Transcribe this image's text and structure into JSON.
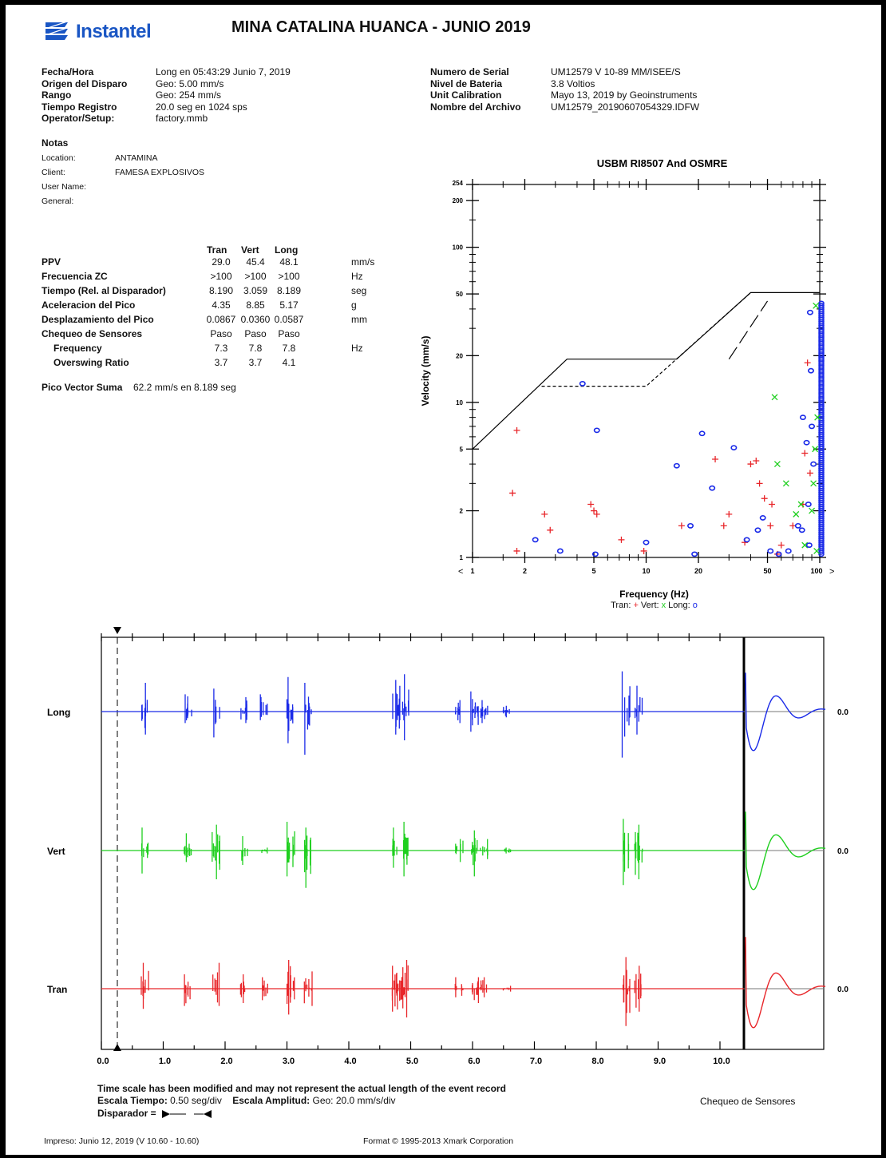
{
  "header": {
    "brand": "Instantel",
    "title": "MINA CATALINA HUANCA - JUNIO 2019",
    "brand_color": "#1a56c4"
  },
  "info_left": [
    {
      "label": "Fecha/Hora",
      "value": "Long en 05:43:29 Junio 7, 2019"
    },
    {
      "label": "Origen del Disparo",
      "value": "Geo: 5.00 mm/s"
    },
    {
      "label": "Rango",
      "value": "Geo: 254 mm/s"
    },
    {
      "label": "Tiempo Registro",
      "value": "20.0 seg en 1024 sps"
    },
    {
      "label": "Operator/Setup:",
      "value": "factory.mmb"
    }
  ],
  "notes": {
    "title": "Notas",
    "rows": [
      {
        "label": "Location:",
        "value": "ANTAMINA"
      },
      {
        "label": "Client:",
        "value": "FAMESA EXPLOSIVOS"
      },
      {
        "label": "User Name:",
        "value": ""
      },
      {
        "label": "General:",
        "value": ""
      }
    ]
  },
  "info_right": [
    {
      "label": "Numero de Serial",
      "value": "UM12579 V 10-89 MM/ISEE/S"
    },
    {
      "label": "Nivel de Bateria",
      "value": "3.8 Voltios"
    },
    {
      "label": "Unit Calibration",
      "value": "Mayo 13, 2019 by Geoinstruments"
    },
    {
      "label": "Nombre del Archivo",
      "value": "UM12579_20190607054329.IDFW"
    }
  ],
  "peak_table": {
    "columns": [
      "Tran",
      "Vert",
      "Long"
    ],
    "rows": [
      {
        "label": "PPV",
        "bold": true,
        "values": [
          "29.0",
          "45.4",
          "48.1"
        ],
        "unit": "mm/s"
      },
      {
        "label": "Frecuencia ZC",
        "bold": true,
        "values": [
          ">100",
          ">100",
          ">100"
        ],
        "unit": "Hz"
      },
      {
        "label": "Tiempo (Rel. al Disparador)",
        "bold": true,
        "values": [
          "8.190",
          "3.059",
          "8.189"
        ],
        "unit": "seg"
      },
      {
        "label": "Aceleracion del Pico",
        "bold": true,
        "values": [
          "4.35",
          "8.85",
          "5.17"
        ],
        "unit": "g"
      },
      {
        "label": "Desplazamiento del Pico",
        "bold": true,
        "values": [
          "0.0867",
          "0.0360",
          "0.0587"
        ],
        "unit": "mm"
      },
      {
        "label": "Chequeo de Sensores",
        "bold": true,
        "values": [
          "Paso",
          "Paso",
          "Paso"
        ],
        "unit": ""
      },
      {
        "label": "Frequency",
        "bold": true,
        "values": [
          "7.3",
          "7.8",
          "7.8"
        ],
        "unit": "Hz"
      },
      {
        "label": "Overswing Ratio",
        "bold": true,
        "values": [
          "3.7",
          "3.7",
          "4.1"
        ],
        "unit": ""
      }
    ],
    "pvs_label": "Pico Vector Suma",
    "pvs_value": "62.2 mm/s en 8.189 seg"
  },
  "chart_data": [
    {
      "type": "scatter",
      "title": "USBM RI8507 And OSMRE",
      "xlabel": "Frequency (Hz)",
      "ylabel": "Velocity (mm/s)",
      "x_scale": "log",
      "y_scale": "log",
      "xlim": [
        1,
        100
      ],
      "ylim": [
        1,
        254
      ],
      "x_ticks": [
        "1",
        "2",
        "5",
        "10",
        "20",
        "50",
        "100"
      ],
      "y_ticks": [
        "1",
        "2",
        "5",
        "10",
        "20",
        "50",
        "100",
        "200",
        "254"
      ],
      "x_left_marker": "<",
      "x_right_marker": ">",
      "legend_label": "Tran: + Vert: x Long: o",
      "limit_lines": [
        {
          "name": "upper",
          "style": "solid",
          "points": [
            [
              1,
              5
            ],
            [
              3.5,
              19
            ],
            [
              15,
              19
            ],
            [
              40,
              51
            ],
            [
              100,
              51
            ]
          ]
        },
        {
          "name": "lower",
          "style": "dashed",
          "points": [
            [
              2.5,
              12.7
            ],
            [
              10,
              12.7
            ],
            [
              40,
              51
            ]
          ]
        },
        {
          "name": "osmre",
          "style": "long-dash",
          "points": [
            [
              30,
              19
            ],
            [
              50,
              45
            ]
          ]
        }
      ],
      "series": [
        {
          "name": "Tran",
          "color": "#e8262a",
          "marker": "+",
          "points": [
            [
              1.8,
              6.6
            ],
            [
              1.7,
              2.6
            ],
            [
              1.8,
              1.1
            ],
            [
              2.6,
              1.9
            ],
            [
              2.8,
              1.5
            ],
            [
              4.8,
              2.2
            ],
            [
              5.0,
              2.0
            ],
            [
              5.2,
              1.9
            ],
            [
              7.2,
              1.3
            ],
            [
              9.7,
              1.1
            ],
            [
              16,
              1.6
            ],
            [
              25,
              4.3
            ],
            [
              28,
              1.6
            ],
            [
              30,
              1.9
            ],
            [
              37,
              1.25
            ],
            [
              40,
              4.0
            ],
            [
              43,
              4.2
            ],
            [
              45,
              3.0
            ],
            [
              48,
              2.4
            ],
            [
              52,
              1.6
            ],
            [
              53,
              2.2
            ],
            [
              57,
              1.05
            ],
            [
              60,
              1.2
            ],
            [
              70,
              1.6
            ],
            [
              80,
              2.2
            ],
            [
              82,
              4.7
            ],
            [
              85,
              18
            ],
            [
              88,
              3.5
            ]
          ]
        },
        {
          "name": "Vert",
          "color": "#1fcf1f",
          "marker": "x",
          "points": [
            [
              55,
              10.8
            ],
            [
              57,
              4.0
            ],
            [
              64,
              3.0
            ],
            [
              73,
              1.9
            ],
            [
              78,
              2.2
            ],
            [
              82,
              1.2
            ],
            [
              90,
              2.0
            ],
            [
              92,
              3.0
            ],
            [
              94,
              5.0
            ],
            [
              95,
              42
            ],
            [
              96,
              1.1
            ],
            [
              97,
              8.0
            ]
          ]
        },
        {
          "name": "Long",
          "color": "#1a2ae8",
          "marker": "o",
          "points": [
            [
              2.3,
              1.3
            ],
            [
              3.2,
              1.1
            ],
            [
              4.3,
              13.2
            ],
            [
              5.2,
              6.6
            ],
            [
              5.1,
              1.05
            ],
            [
              10,
              1.25
            ],
            [
              15,
              3.9
            ],
            [
              18,
              1.6
            ],
            [
              19,
              1.05
            ],
            [
              21,
              6.3
            ],
            [
              24,
              2.8
            ],
            [
              32,
              5.1
            ],
            [
              38,
              1.3
            ],
            [
              44,
              1.5
            ],
            [
              47,
              1.8
            ],
            [
              52,
              1.1
            ],
            [
              58,
              1.05
            ],
            [
              66,
              1.1
            ],
            [
              75,
              1.6
            ],
            [
              79,
              1.5
            ],
            [
              80,
              8.0
            ],
            [
              84,
              5.5
            ],
            [
              86,
              2.2
            ],
            [
              87,
              1.2
            ],
            [
              88,
              38
            ],
            [
              89,
              16
            ],
            [
              90,
              7.0
            ],
            [
              92,
              4.0
            ]
          ]
        }
      ]
    },
    {
      "type": "line",
      "title": "",
      "channels": [
        {
          "name": "Long",
          "color": "#1a2ae8",
          "zero_label": "0.0"
        },
        {
          "name": "Vert",
          "color": "#1fcf1f",
          "zero_label": "0.0"
        },
        {
          "name": "Tran",
          "color": "#e8262a",
          "zero_label": "0.0"
        }
      ],
      "x_ticks": [
        "0.0",
        "1.0",
        "2.0",
        "3.0",
        "4.0",
        "5.0",
        "6.0",
        "7.0",
        "8.0",
        "9.0",
        "10.0"
      ],
      "xlim": [
        0,
        10
      ],
      "trigger_time": 0.0,
      "events": [
        {
          "t": 0.42,
          "long": [
            0.5,
            -0.4
          ],
          "vert": [
            0.4,
            -0.4
          ],
          "tran": [
            0.45,
            -0.35
          ]
        },
        {
          "t": 1.12,
          "long": [
            0.3,
            -0.2
          ],
          "vert": [
            0.3,
            -0.2
          ],
          "tran": [
            0.25,
            -0.3
          ]
        },
        {
          "t": 1.57,
          "long": [
            0.4,
            -0.45
          ],
          "vert": [
            0.45,
            -0.5
          ],
          "tran": [
            0.45,
            -0.3
          ]
        },
        {
          "t": 2.02,
          "long": [
            0.25,
            -0.2
          ],
          "vert": [
            0.25,
            -0.25
          ],
          "tran": [
            0.25,
            -0.25
          ]
        },
        {
          "t": 2.35,
          "long": [
            0.3,
            -0.15
          ],
          "vert": [
            0.05,
            -0.05
          ],
          "tran": [
            0.2,
            -0.2
          ]
        },
        {
          "t": 2.78,
          "long": [
            0.6,
            -0.55
          ],
          "vert": [
            0.5,
            -0.45
          ],
          "tran": [
            0.5,
            -0.45
          ]
        },
        {
          "t": 3.06,
          "long": [
            0.5,
            -0.75
          ],
          "vert": [
            0.4,
            -0.65
          ],
          "tran": [
            0.3,
            -0.3
          ]
        },
        {
          "t": 4.48,
          "long": [
            0.55,
            -0.4
          ],
          "vert": [
            0.4,
            -0.3
          ],
          "tran": [
            0.4,
            -0.4
          ]
        },
        {
          "t": 4.62,
          "long": [
            0.65,
            -0.5
          ],
          "vert": [
            0.5,
            -0.45
          ],
          "tran": [
            0.5,
            -0.5
          ]
        },
        {
          "t": 5.5,
          "long": [
            0.2,
            -0.2
          ],
          "vert": [
            0.2,
            -0.2
          ],
          "tran": [
            0.2,
            -0.15
          ]
        },
        {
          "t": 5.75,
          "long": [
            0.35,
            -0.35
          ],
          "vert": [
            0.35,
            -0.45
          ],
          "tran": [
            0.2,
            -0.25
          ]
        },
        {
          "t": 5.9,
          "long": [
            0.2,
            -0.2
          ],
          "vert": [
            0.2,
            -0.15
          ],
          "tran": [
            0.2,
            -0.15
          ]
        },
        {
          "t": 6.27,
          "long": [
            0.1,
            -0.1
          ],
          "vert": [
            0.05,
            -0.05
          ],
          "tran": [
            0.05,
            -0.05
          ]
        },
        {
          "t": 8.2,
          "long": [
            0.7,
            -0.8
          ],
          "vert": [
            0.55,
            -0.6
          ],
          "tran": [
            0.55,
            -0.65
          ]
        },
        {
          "t": 8.4,
          "long": [
            0.45,
            -0.4
          ],
          "vert": [
            0.45,
            -0.5
          ],
          "tran": [
            0.4,
            -0.4
          ]
        }
      ],
      "sensor_check_label": "Chequeo de Sensores"
    }
  ],
  "footer_notes": {
    "modified": "Time scale has been modified and may not represent the actual length of the event record",
    "time_scale_label": "Escala Tiempo:",
    "time_scale_value": "0.50 seg/div",
    "amp_scale_label": "Escala Amplitud:",
    "amp_scale_value": "Geo: 20.0 mm/s/div",
    "trigger_label": "Disparador ="
  },
  "footer": {
    "printed": "Impreso: Junio 12, 2019 (V 10.60 - 10.60)",
    "format": "Format © 1995-2013 Xmark Corporation"
  }
}
